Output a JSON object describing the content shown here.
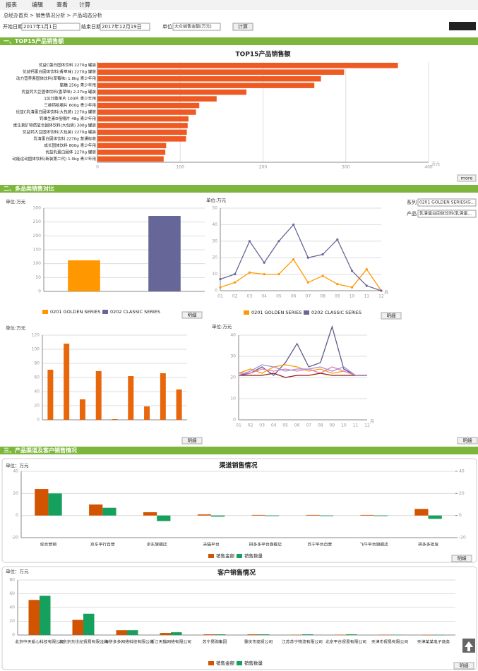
{
  "toolbar": [
    "报表",
    "编辑",
    "查看",
    "计算"
  ],
  "breadcrumb": "总经办首页 > 销售情况分析 > 产品动态分析",
  "filters": {
    "start_label": "开始日期",
    "start": "2017年1月1日",
    "end_label": "结束日期",
    "end": "2017年12月19日",
    "unit_label": "单位:",
    "unit": "大众销售金额(万元)",
    "button": "计算"
  },
  "sections": [
    "一、TOP15产品销售额",
    "二、多品类销售对比",
    "三、产品渠道及客户销售情况"
  ],
  "buttons": {
    "more": "more",
    "detail": "明细"
  },
  "selectors": {
    "series_label": "系列",
    "series": "0201 GOLDEN SERIES(G...",
    "product_label": "产品",
    "product": "乳清蛋白固体饮料(乳清蛋..."
  },
  "chart_data": [
    {
      "type": "bar",
      "orientation": "horizontal",
      "title": "TOP15产品销售额",
      "x_label": "万元",
      "color": "#ee5a24",
      "categories": [
        "优益C蛋白固体饮料 2270g 罐装",
        "优益钙蛋白固体饮料(香草味) 2270g 罐装",
        "动力营养素固体饮料(草莓味) 1.8kg 青少年用",
        "氨糖 250g 青少年用",
        "优益钙大豆固体饮料(香草味) 2.27kg 罐装",
        "1区分散单片 100片 青少年用",
        "三维钙咀嚼片 600g 青少年用",
        "优益C乳清蛋白固体饮料(大包装) 2270g 罐装",
        "钙维生素D咀嚼片 48g 青少年用",
        "维生素矿物质复合固体饮料(大包装) 300g 罐装",
        "优益钙大豆固体饮料(大包装) 2270g 罐装",
        "乳清蛋白固体饮料 2270g 普通标装",
        "成长固体饮料 800g 青少年用",
        "优益乳蛋白固体 2270g 罐装",
        "动能运动固体饮料(新装第二代) 1.0kg 青少年用"
      ],
      "values": [
        363,
        298,
        270,
        262,
        180,
        144,
        123,
        119,
        110,
        109,
        108,
        107,
        83,
        82,
        80
      ],
      "xlim": [
        0,
        400
      ],
      "xticks": [
        0,
        100,
        200,
        300,
        400
      ],
      "grid": true
    },
    {
      "type": "bar",
      "unit": "单位:万元",
      "categories": [
        null,
        null
      ],
      "series": [
        {
          "name": "0201 GOLDEN SERIES",
          "color": "#ff9800",
          "values": [
            112,
            null
          ]
        },
        {
          "name": "0202 CLASSIC SERIES",
          "color": "#666699",
          "values": [
            null,
            272
          ]
        }
      ],
      "ylim": [
        0,
        300
      ],
      "yticks": [
        0,
        50,
        100,
        150,
        200,
        250,
        300
      ],
      "grid": true
    },
    {
      "type": "line",
      "unit": "单位:万元",
      "x_label": "月",
      "markers": true,
      "categories": [
        "01",
        "02",
        "03",
        "04",
        "05",
        "06",
        "07",
        "08",
        "09",
        "10",
        "11",
        "12"
      ],
      "series": [
        {
          "name": "0201 GOLDEN SERIES",
          "color": "#ff9800",
          "values": [
            2,
            5,
            11,
            10,
            10,
            19,
            5,
            9,
            4,
            2,
            13,
            0
          ]
        },
        {
          "name": "0202 CLASSIC SERIES",
          "color": "#666699",
          "values": [
            7,
            10,
            30,
            17,
            30,
            40,
            20,
            22,
            31,
            12,
            3,
            0
          ]
        }
      ],
      "ylim": [
        0,
        50
      ],
      "yticks": [
        0,
        10,
        20,
        30,
        40,
        50
      ],
      "grid": true
    },
    {
      "type": "bar",
      "unit": "单位:万元",
      "color": "#e8660c",
      "categories": [
        null,
        null,
        null,
        null,
        null,
        null,
        null,
        null,
        null
      ],
      "values": [
        71,
        108,
        29,
        69,
        1,
        62,
        19,
        66,
        43
      ],
      "ylim": [
        0,
        120
      ],
      "yticks": [
        0,
        20,
        40,
        60,
        80,
        100,
        120
      ],
      "grid": true
    },
    {
      "type": "line",
      "unit": "单位:万元",
      "x_label": "月",
      "markers": false,
      "categories": [
        "01",
        "02",
        "03",
        "04",
        "05",
        "06",
        "07",
        "08",
        "09",
        "10",
        "11",
        "12"
      ],
      "series": [
        {
          "color": "#5c5c8a",
          "values": [
            21,
            22,
            25,
            21,
            27,
            36,
            25,
            27,
            44,
            24,
            21,
            21
          ]
        },
        {
          "color": "#ff9800",
          "values": [
            22,
            24,
            22,
            25,
            26,
            25,
            23,
            24,
            22,
            23,
            21,
            21
          ]
        },
        {
          "color": "#e67fb4",
          "values": [
            22,
            22,
            24,
            23,
            24,
            23,
            24,
            22,
            25,
            23,
            21,
            21
          ]
        },
        {
          "color": "#8b1a1a",
          "values": [
            21,
            21,
            21,
            22,
            20,
            21,
            21,
            22,
            21,
            21,
            21,
            21
          ]
        },
        {
          "color": "#a28ed6",
          "values": [
            21,
            23,
            26,
            25,
            23,
            24,
            24,
            25,
            23,
            25,
            21,
            21
          ]
        }
      ],
      "ylim": [
        0,
        40
      ],
      "yticks": [
        0,
        10,
        20,
        30,
        40
      ],
      "grid": true
    },
    {
      "type": "bar",
      "title": "渠道销售情况",
      "unit": "单位：万元",
      "categories": [
        "综合营销",
        "京东平行自营",
        "京东旗舰店",
        "天猫平台",
        "拼多多平台旗舰店",
        "苏宁平台自营",
        "飞牛平台旗舰店",
        "拼多多批发"
      ],
      "series": [
        {
          "name": "销售金额",
          "color": "#d35400",
          "values": [
            24,
            10,
            3,
            1,
            0.5,
            0.5,
            0.5,
            6
          ]
        },
        {
          "name": "销售数量",
          "color": "#16a05d",
          "axis": "y2",
          "values": [
            20,
            7,
            -5,
            -1,
            -0.5,
            -0.5,
            -0.5,
            -3
          ]
        }
      ],
      "ylim": [
        -20,
        40
      ],
      "yticks": [
        -20,
        0,
        20,
        40
      ],
      "y2lim": [
        -20,
        40
      ],
      "y2ticks": [
        -20,
        0,
        20,
        40
      ],
      "grid": true
    },
    {
      "type": "bar",
      "title": "客户销售情况",
      "unit": "单位：万元",
      "categories": [
        "北京中天爱心科技有限公司",
        "北京京东世纪贸易有限公司",
        "上海拼多多网络科技有限公司",
        "浙江天猫网络有限公司",
        "苏宁易购集团",
        "重庆市商贸公司",
        "江苏苏宁物流有限公司",
        "北京平台贸易有限公司",
        "天津市贸易有限公司",
        "天津某某电子商务"
      ],
      "series": [
        {
          "name": "销售金额",
          "color": "#d35400",
          "values": [
            51,
            22,
            7,
            3,
            1,
            1,
            0.5,
            0.5,
            0.5,
            0.3
          ]
        },
        {
          "name": "销售数量",
          "color": "#16a05d",
          "values": [
            57,
            31,
            7,
            4,
            1,
            1,
            1,
            1,
            0.5,
            0.3
          ]
        }
      ],
      "ylim": [
        0,
        80
      ],
      "yticks": [
        0,
        20,
        40,
        60,
        80
      ],
      "grid": true
    }
  ]
}
